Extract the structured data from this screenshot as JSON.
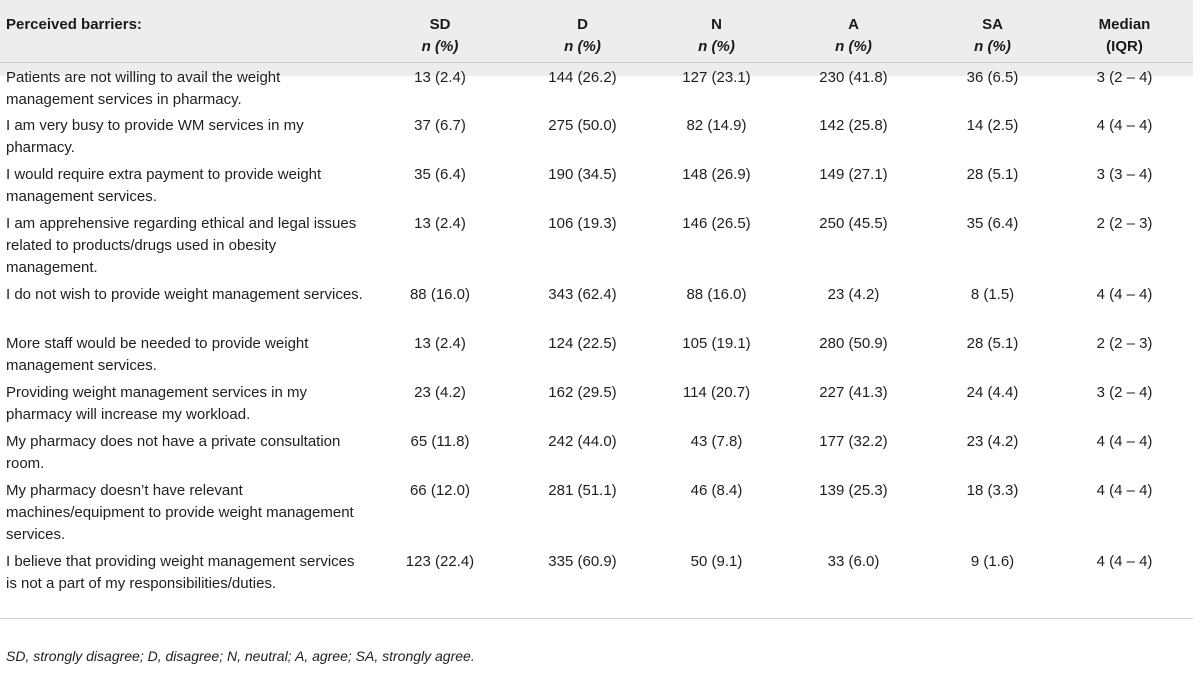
{
  "table": {
    "header_label": "Perceived barriers:",
    "columns": [
      {
        "top": "SD",
        "sub": "n (%)"
      },
      {
        "top": "D",
        "sub": "n (%)"
      },
      {
        "top": "N",
        "sub": "n (%)"
      },
      {
        "top": "A",
        "sub": "n (%)"
      },
      {
        "top": "SA",
        "sub": "n (%)"
      },
      {
        "top": "Median",
        "sub": "(IQR)"
      }
    ],
    "rows": [
      {
        "label": "Patients are not willing to avail the weight management services in pharmacy.",
        "sd": "13 (2.4)",
        "d": "144 (26.2)",
        "n": "127 (23.1)",
        "a": "230 (41.8)",
        "sa": "36 (6.5)",
        "median": "3 (2 – 4)"
      },
      {
        "label": "I am very busy to provide WM services in my pharmacy.",
        "sd": "37 (6.7)",
        "d": "275 (50.0)",
        "n": "82 (14.9)",
        "a": "142 (25.8)",
        "sa": "14 (2.5)",
        "median": "4 (4 – 4)"
      },
      {
        "label": "I would require extra payment to provide weight management services.",
        "sd": "35 (6.4)",
        "d": "190 (34.5)",
        "n": "148 (26.9)",
        "a": "149 (27.1)",
        "sa": "28 (5.1)",
        "median": "3 (3 – 4)"
      },
      {
        "label": "I am apprehensive regarding ethical and legal issues related to products/drugs used in obesity management.",
        "sd": "13 (2.4)",
        "d": "106 (19.3)",
        "n": "146 (26.5)",
        "a": "250 (45.5)",
        "sa": "35 (6.4)",
        "median": "2 (2 – 3)"
      },
      {
        "label": "I do not wish to provide weight management services.",
        "sd": "88 (16.0)",
        "d": "343 (62.4)",
        "n": "88 (16.0)",
        "a": "23 (4.2)",
        "sa": "8 (1.5)",
        "median": "4 (4 – 4)"
      },
      {
        "label": "More staff would be needed to provide weight management services.",
        "sd": "13 (2.4)",
        "d": "124 (22.5)",
        "n": "105 (19.1)",
        "a": "280 (50.9)",
        "sa": "28 (5.1)",
        "median": "2 (2 – 3)"
      },
      {
        "label": "Providing weight management services in my pharmacy will increase my workload.",
        "sd": "23 (4.2)",
        "d": "162 (29.5)",
        "n": "114 (20.7)",
        "a": "227 (41.3)",
        "sa": "24 (4.4)",
        "median": "3 (2 – 4)"
      },
      {
        "label": "My pharmacy does not have a private consultation room.",
        "sd": "65 (11.8)",
        "d": "242 (44.0)",
        "n": "43 (7.8)",
        "a": "177 (32.2)",
        "sa": "23 (4.2)",
        "median": "4 (4 – 4)"
      },
      {
        "label": "My pharmacy doesn’t have relevant machines/equipment to provide weight management services.",
        "sd": "66 (12.0)",
        "d": "281 (51.1)",
        "n": "46 (8.4)",
        "a": "139 (25.3)",
        "sa": "18 (3.3)",
        "median": "4 (4 – 4)"
      },
      {
        "label": "I believe that providing weight management services is not a part of my responsibilities/duties.",
        "sd": "123 (22.4)",
        "d": "335 (60.9)",
        "n": "50 (9.1)",
        "a": "33 (6.0)",
        "sa": "9 (1.6)",
        "median": "4 (4 – 4)"
      }
    ],
    "footnote": "SD, strongly disagree; D, disagree; N, neutral; A, agree; SA, strongly agree."
  }
}
